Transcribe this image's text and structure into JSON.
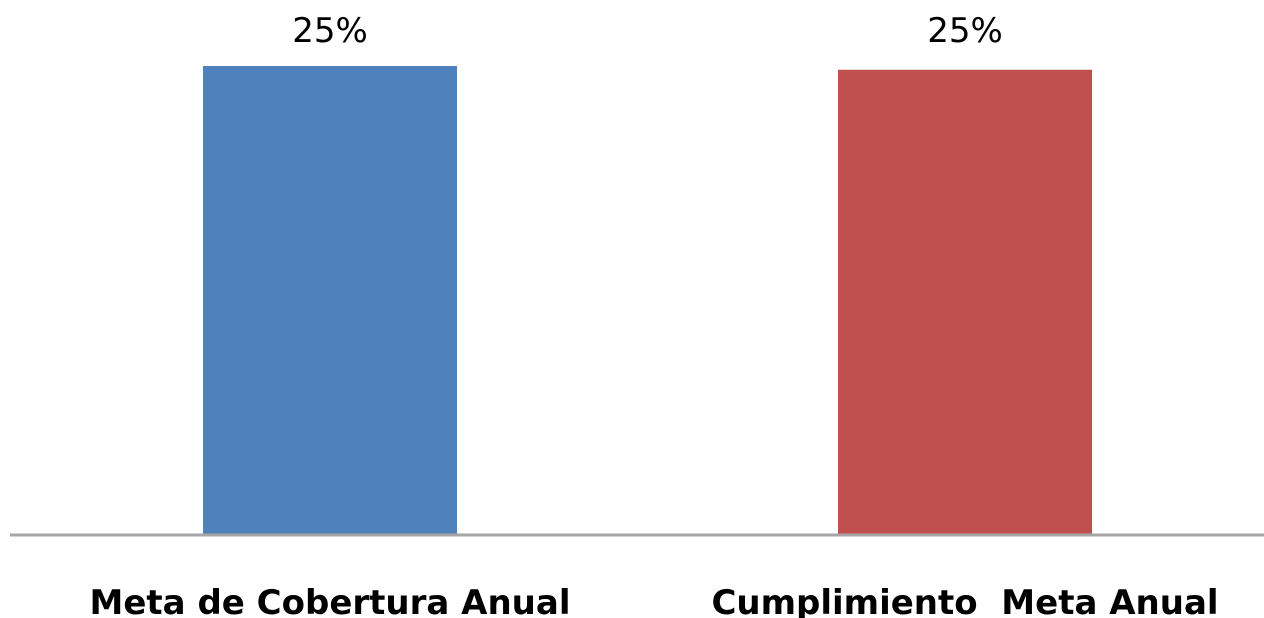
{
  "chart_data": {
    "type": "bar",
    "categories": [
      "Meta de Cobertura Anual",
      "Cumplimiento  Meta Anual"
    ],
    "values": [
      25,
      24.8
    ],
    "value_labels": [
      "25%",
      "25%"
    ],
    "unit": "%",
    "colors": [
      "#4F81BD",
      "#C0504D"
    ],
    "ylim": [
      0,
      25
    ],
    "grid": false,
    "legend": "none",
    "title": "",
    "xlabel": "",
    "ylabel": ""
  },
  "colors": {
    "axis": "#A6A6A6",
    "background": "#FFFFFF"
  }
}
